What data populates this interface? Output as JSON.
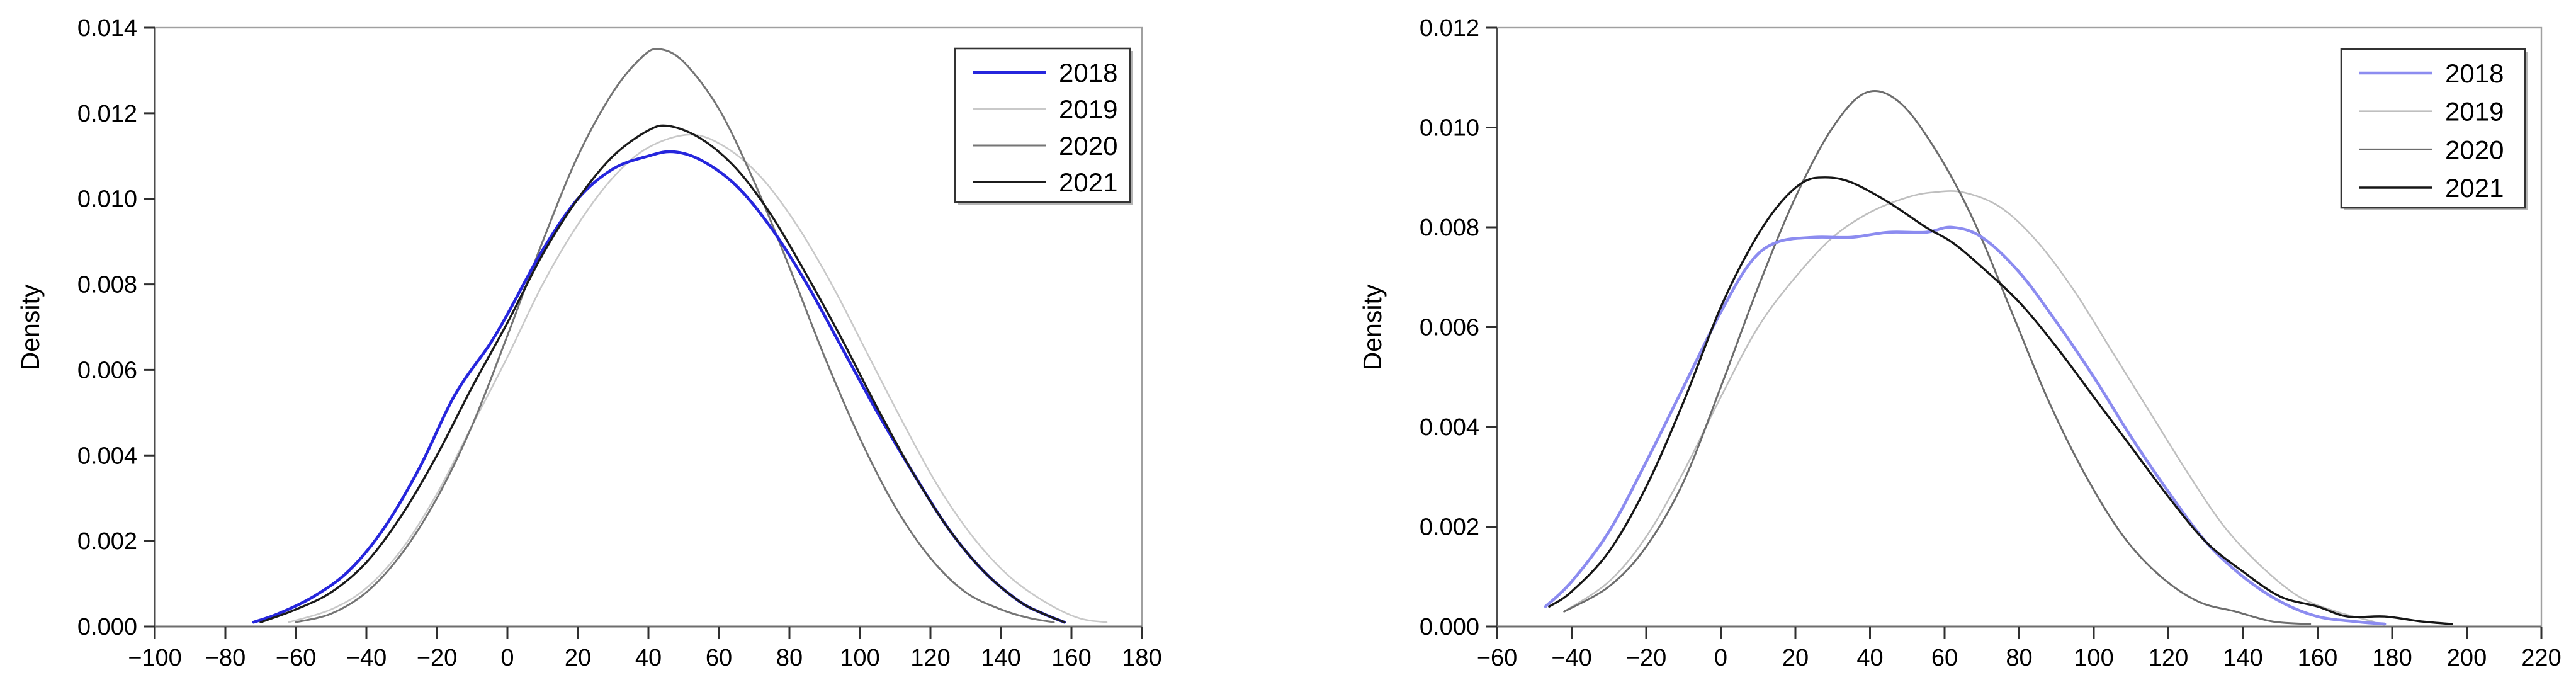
{
  "page": {
    "background": "#ffffff"
  },
  "colors": {
    "frame": "#a0a0a0",
    "y_axis": "#4d4d4d",
    "x_axis": "#6e6e6e",
    "tick": "#2f2f2f",
    "text": "#000000",
    "legend_border": "#333333",
    "legend_shadow": "#b5b5b5",
    "legend_fill": "#ffffff"
  },
  "chart_data": [
    {
      "type": "line",
      "title": "",
      "xlabel": "",
      "ylabel": "Density",
      "xlim": [
        -100,
        180
      ],
      "ylim": [
        0,
        0.014
      ],
      "grid": false,
      "legend_position": "top-right",
      "x_tick_values": [
        -100,
        -80,
        -60,
        -40,
        -20,
        0,
        20,
        40,
        60,
        80,
        100,
        120,
        140,
        160,
        180
      ],
      "x_tick_labels": [
        "−100",
        "−80",
        "−60",
        "−40",
        "−20",
        "0",
        "20",
        "40",
        "60",
        "80",
        "100",
        "120",
        "140",
        "160",
        "180"
      ],
      "y_tick_values": [
        0,
        0.002,
        0.004,
        0.006,
        0.008,
        0.01,
        0.012,
        0.014
      ],
      "y_tick_labels": [
        "0.000",
        "0.002",
        "0.004",
        "0.006",
        "0.008",
        "0.010",
        "0.012",
        "0.014"
      ],
      "series": [
        {
          "name": "2019",
          "color": "#c9c9c9",
          "width": 2.6,
          "points": [
            [
              -62,
              0.0001
            ],
            [
              -50,
              0.0004
            ],
            [
              -40,
              0.0009
            ],
            [
              -30,
              0.0018
            ],
            [
              -20,
              0.0031
            ],
            [
              -10,
              0.0047
            ],
            [
              0,
              0.0063
            ],
            [
              10,
              0.008
            ],
            [
              20,
              0.0094
            ],
            [
              30,
              0.0105
            ],
            [
              40,
              0.0112
            ],
            [
              52,
              0.0115
            ],
            [
              62,
              0.0112
            ],
            [
              72,
              0.0105
            ],
            [
              82,
              0.0094
            ],
            [
              92,
              0.008
            ],
            [
              102,
              0.0064
            ],
            [
              112,
              0.0048
            ],
            [
              122,
              0.0033
            ],
            [
              132,
              0.0021
            ],
            [
              142,
              0.0012
            ],
            [
              152,
              0.0006
            ],
            [
              162,
              0.0002
            ],
            [
              170,
              0.0001
            ]
          ]
        },
        {
          "name": "2020",
          "color": "#757575",
          "width": 3.0,
          "points": [
            [
              -60,
              0.0001
            ],
            [
              -50,
              0.0003
            ],
            [
              -40,
              0.0008
            ],
            [
              -30,
              0.0017
            ],
            [
              -20,
              0.003
            ],
            [
              -10,
              0.0047
            ],
            [
              0,
              0.0068
            ],
            [
              10,
              0.009
            ],
            [
              20,
              0.011
            ],
            [
              30,
              0.0125
            ],
            [
              38,
              0.0133
            ],
            [
              43,
              0.0135
            ],
            [
              50,
              0.0132
            ],
            [
              60,
              0.0121
            ],
            [
              70,
              0.0104
            ],
            [
              80,
              0.0084
            ],
            [
              90,
              0.0063
            ],
            [
              100,
              0.0044
            ],
            [
              110,
              0.0028
            ],
            [
              120,
              0.0016
            ],
            [
              130,
              0.0008
            ],
            [
              140,
              0.0004
            ],
            [
              148,
              0.0002
            ],
            [
              155,
              0.0001
            ]
          ]
        },
        {
          "name": "2018",
          "color": "#2626dd",
          "width": 4.6,
          "points": [
            [
              -72,
              0.0001
            ],
            [
              -65,
              0.0003
            ],
            [
              -55,
              0.0007
            ],
            [
              -45,
              0.0013
            ],
            [
              -35,
              0.0023
            ],
            [
              -25,
              0.0037
            ],
            [
              -15,
              0.0054
            ],
            [
              -5,
              0.0066
            ],
            [
              0,
              0.0073
            ],
            [
              10,
              0.0088
            ],
            [
              20,
              0.01
            ],
            [
              30,
              0.0107
            ],
            [
              40,
              0.011
            ],
            [
              47,
              0.0111
            ],
            [
              55,
              0.0109
            ],
            [
              65,
              0.0103
            ],
            [
              75,
              0.0093
            ],
            [
              85,
              0.008
            ],
            [
              95,
              0.0065
            ],
            [
              105,
              0.005
            ],
            [
              115,
              0.0036
            ],
            [
              125,
              0.0023
            ],
            [
              135,
              0.0013
            ],
            [
              145,
              0.0006
            ],
            [
              152,
              0.0003
            ],
            [
              158,
              0.0001
            ]
          ]
        },
        {
          "name": "2021",
          "color": "#1b1b1b",
          "width": 3.4,
          "points": [
            [
              -70,
              0.0001
            ],
            [
              -60,
              0.0004
            ],
            [
              -50,
              0.0008
            ],
            [
              -40,
              0.0015
            ],
            [
              -30,
              0.0026
            ],
            [
              -20,
              0.004
            ],
            [
              -10,
              0.0056
            ],
            [
              0,
              0.0071
            ],
            [
              10,
              0.0087
            ],
            [
              20,
              0.01
            ],
            [
              30,
              0.011
            ],
            [
              40,
              0.0116
            ],
            [
              46,
              0.0117
            ],
            [
              55,
              0.0114
            ],
            [
              65,
              0.0107
            ],
            [
              75,
              0.0096
            ],
            [
              85,
              0.0082
            ],
            [
              95,
              0.0067
            ],
            [
              105,
              0.0051
            ],
            [
              115,
              0.0036
            ],
            [
              125,
              0.0023
            ],
            [
              135,
              0.0013
            ],
            [
              145,
              0.0006
            ],
            [
              152,
              0.0003
            ],
            [
              158,
              0.0001
            ]
          ]
        }
      ],
      "legend_entries": [
        {
          "label": "2018",
          "color": "#2626dd",
          "width": 4.6
        },
        {
          "label": "2019",
          "color": "#c9c9c9",
          "width": 2.6
        },
        {
          "label": "2020",
          "color": "#757575",
          "width": 3.0
        },
        {
          "label": "2021",
          "color": "#1b1b1b",
          "width": 3.4
        }
      ]
    },
    {
      "type": "line",
      "title": "",
      "xlabel": "",
      "ylabel": "Density",
      "xlim": [
        -60,
        220
      ],
      "ylim": [
        0,
        0.012
      ],
      "grid": false,
      "legend_position": "top-right",
      "x_tick_values": [
        -60,
        -40,
        -20,
        0,
        20,
        40,
        60,
        80,
        100,
        120,
        140,
        160,
        180,
        200,
        220
      ],
      "x_tick_labels": [
        "−60",
        "−40",
        "−20",
        "0",
        "20",
        "40",
        "60",
        "80",
        "100",
        "120",
        "140",
        "160",
        "180",
        "200",
        "220"
      ],
      "y_tick_values": [
        0,
        0.002,
        0.004,
        0.006,
        0.008,
        0.01,
        0.012
      ],
      "y_tick_labels": [
        "0.000",
        "0.002",
        "0.004",
        "0.006",
        "0.008",
        "0.010",
        "0.012"
      ],
      "series": [
        {
          "name": "2019",
          "color": "#bfbfbf",
          "width": 2.6,
          "points": [
            [
              -42,
              0.0003
            ],
            [
              -30,
              0.0009
            ],
            [
              -20,
              0.0018
            ],
            [
              -10,
              0.0031
            ],
            [
              0,
              0.0046
            ],
            [
              10,
              0.006
            ],
            [
              20,
              0.007
            ],
            [
              30,
              0.0078
            ],
            [
              40,
              0.0083
            ],
            [
              50,
              0.0086
            ],
            [
              57,
              0.0087
            ],
            [
              65,
              0.0087
            ],
            [
              75,
              0.0084
            ],
            [
              85,
              0.0077
            ],
            [
              95,
              0.0067
            ],
            [
              105,
              0.0055
            ],
            [
              115,
              0.0043
            ],
            [
              125,
              0.0031
            ],
            [
              135,
              0.002
            ],
            [
              145,
              0.0012
            ],
            [
              155,
              0.0006
            ],
            [
              165,
              0.0003
            ],
            [
              175,
              0.0001
            ]
          ]
        },
        {
          "name": "2020",
          "color": "#6d6d6d",
          "width": 3.0,
          "points": [
            [
              -42,
              0.0003
            ],
            [
              -30,
              0.0008
            ],
            [
              -20,
              0.0016
            ],
            [
              -10,
              0.0029
            ],
            [
              0,
              0.0048
            ],
            [
              10,
              0.0068
            ],
            [
              20,
              0.0086
            ],
            [
              30,
              0.01
            ],
            [
              39,
              0.0107
            ],
            [
              48,
              0.0105
            ],
            [
              58,
              0.0095
            ],
            [
              68,
              0.0081
            ],
            [
              78,
              0.0063
            ],
            [
              88,
              0.0045
            ],
            [
              98,
              0.003
            ],
            [
              108,
              0.0018
            ],
            [
              118,
              0.001
            ],
            [
              128,
              0.0005
            ],
            [
              138,
              0.0003
            ],
            [
              148,
              0.0001
            ],
            [
              158,
              5e-05
            ]
          ]
        },
        {
          "name": "2018",
          "color": "#8c8cf0",
          "width": 4.6,
          "points": [
            [
              -47,
              0.0004
            ],
            [
              -40,
              0.0009
            ],
            [
              -30,
              0.0019
            ],
            [
              -20,
              0.0033
            ],
            [
              -10,
              0.0048
            ],
            [
              0,
              0.0063
            ],
            [
              8,
              0.0073
            ],
            [
              15,
              0.0077
            ],
            [
              25,
              0.0078
            ],
            [
              35,
              0.0078
            ],
            [
              45,
              0.0079
            ],
            [
              55,
              0.0079
            ],
            [
              62,
              0.008
            ],
            [
              70,
              0.0078
            ],
            [
              80,
              0.0071
            ],
            [
              90,
              0.0061
            ],
            [
              100,
              0.005
            ],
            [
              110,
              0.0038
            ],
            [
              120,
              0.0027
            ],
            [
              130,
              0.0017
            ],
            [
              140,
              0.001
            ],
            [
              150,
              0.0005
            ],
            [
              160,
              0.0002
            ],
            [
              170,
              0.0001
            ],
            [
              178,
              5e-05
            ]
          ]
        },
        {
          "name": "2021",
          "color": "#161616",
          "width": 3.4,
          "points": [
            [
              -46,
              0.0004
            ],
            [
              -40,
              0.0007
            ],
            [
              -30,
              0.0015
            ],
            [
              -20,
              0.0028
            ],
            [
              -10,
              0.0045
            ],
            [
              0,
              0.0064
            ],
            [
              8,
              0.0076
            ],
            [
              15,
              0.0084
            ],
            [
              22,
              0.0089
            ],
            [
              28,
              0.009
            ],
            [
              35,
              0.0089
            ],
            [
              45,
              0.0085
            ],
            [
              55,
              0.008
            ],
            [
              62,
              0.0077
            ],
            [
              70,
              0.0072
            ],
            [
              80,
              0.0065
            ],
            [
              90,
              0.0056
            ],
            [
              100,
              0.0046
            ],
            [
              110,
              0.0036
            ],
            [
              120,
              0.0026
            ],
            [
              130,
              0.0017
            ],
            [
              140,
              0.0011
            ],
            [
              150,
              0.0006
            ],
            [
              160,
              0.0004
            ],
            [
              168,
              0.0002
            ],
            [
              178,
              0.0002
            ],
            [
              188,
              0.0001
            ],
            [
              196,
              5e-05
            ]
          ]
        }
      ],
      "legend_entries": [
        {
          "label": "2018",
          "color": "#8c8cf0",
          "width": 4.6
        },
        {
          "label": "2019",
          "color": "#bfbfbf",
          "width": 2.6
        },
        {
          "label": "2020",
          "color": "#6d6d6d",
          "width": 3.0
        },
        {
          "label": "2021",
          "color": "#161616",
          "width": 3.4
        }
      ]
    }
  ]
}
